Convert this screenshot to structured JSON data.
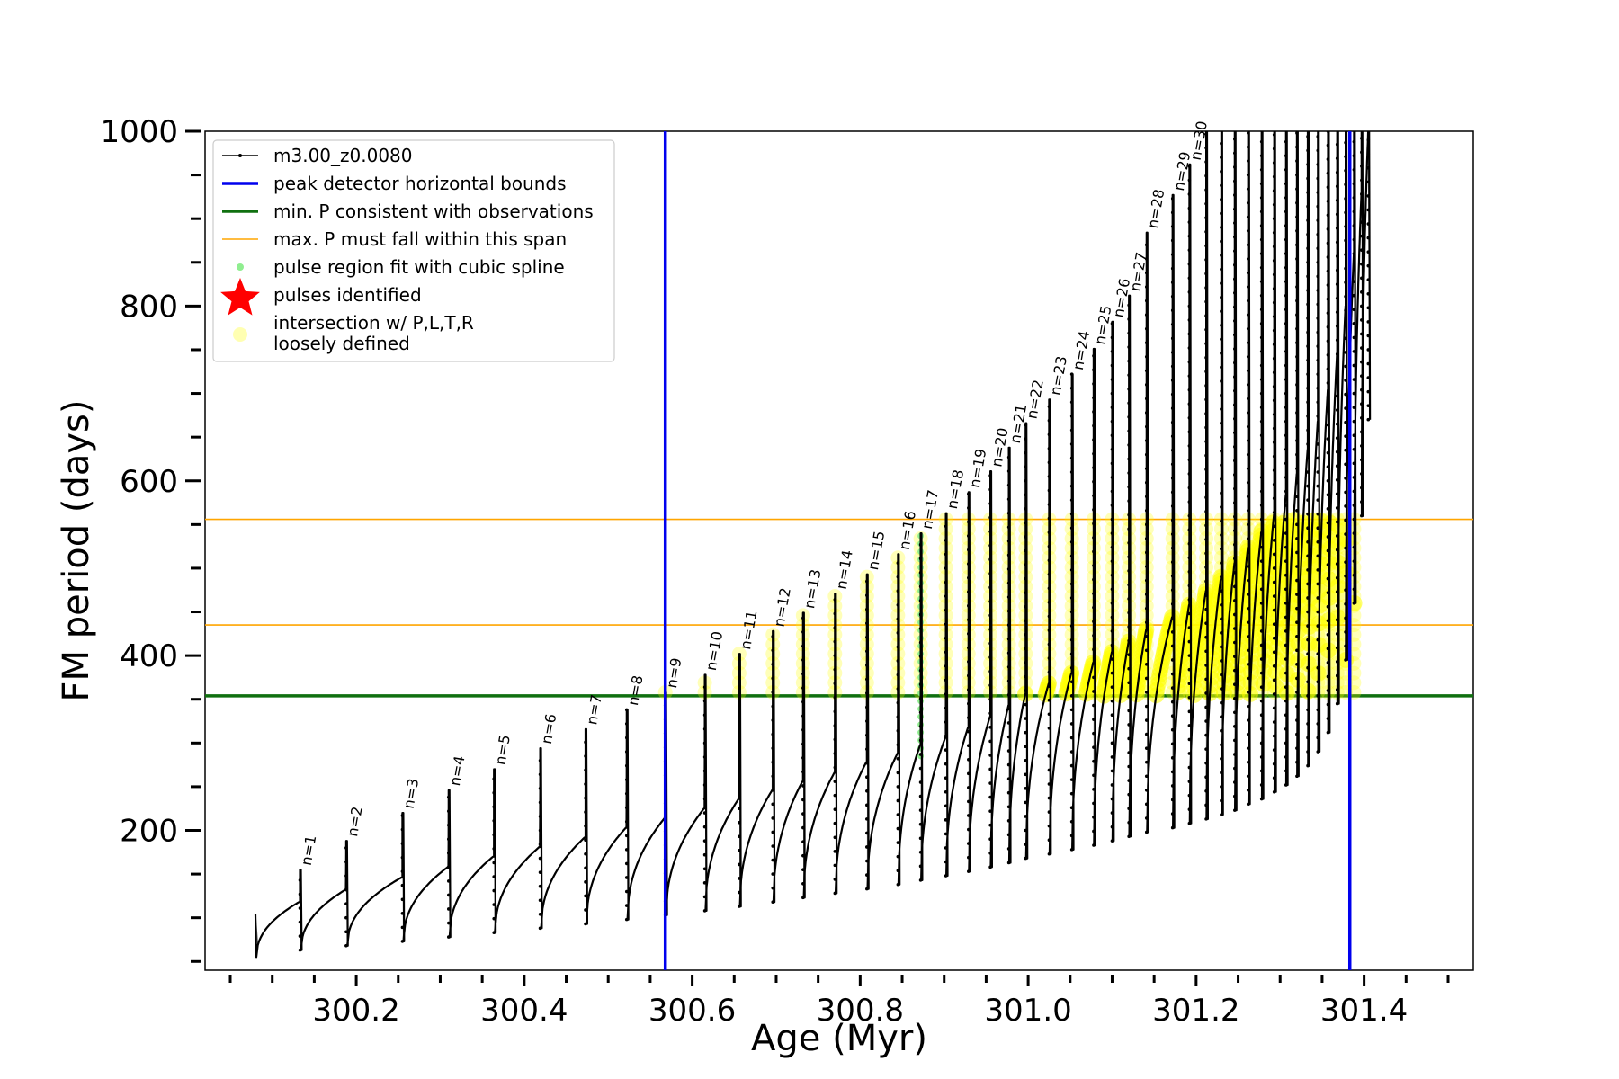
{
  "chart_data": {
    "type": "line",
    "title": "",
    "xlabel": "Age (Myr)",
    "ylabel": "FM period (days)",
    "xlim": [
      300.02,
      301.53
    ],
    "ylim": [
      40,
      1000
    ],
    "x_ticks": [
      300.2,
      300.4,
      300.6,
      300.8,
      301.0,
      301.2,
      301.4
    ],
    "x_tick_labels": [
      "300.2",
      "300.4",
      "300.6",
      "300.8",
      "301.0",
      "301.2",
      "301.4"
    ],
    "y_ticks": [
      200,
      400,
      600,
      800,
      1000
    ],
    "y_tick_labels": [
      "200",
      "400",
      "600",
      "800",
      "1000"
    ],
    "grid": false,
    "legend_position": "top-left",
    "legend": [
      {
        "label": "m3.00_z0.0080",
        "style": "black-line-dot"
      },
      {
        "label": "peak detector horizontal bounds",
        "style": "blue-line"
      },
      {
        "label": "min. P consistent with observations",
        "style": "green-line"
      },
      {
        "label": "max. P must fall within this span",
        "style": "orange-line"
      },
      {
        "label": "pulse region fit with cubic spline",
        "style": "lightgreen-dot"
      },
      {
        "label": "pulses identified",
        "style": "red-star"
      },
      {
        "label": "intersection w/ P,L,T,R",
        "label2": "loosely defined",
        "style": "yellow-circle"
      }
    ],
    "vertical_lines": {
      "color": "#0000ee",
      "x": [
        300.568,
        301.383
      ]
    },
    "min_period_line": {
      "color": "#107010",
      "y": 354
    },
    "max_period_lines": {
      "color": "#ffa500",
      "y": [
        435,
        556
      ]
    },
    "series_color": "#000000",
    "highlight_color": "#ffff00",
    "spline_color": "#90ee90",
    "pulses": [
      {
        "label": "n=1",
        "age": 300.133,
        "peak": 155,
        "floor": 63,
        "pre": 118
      },
      {
        "label": "n=2",
        "age": 300.188,
        "peak": 188,
        "floor": 68,
        "pre": 132
      },
      {
        "label": "n=3",
        "age": 300.255,
        "peak": 220,
        "floor": 73,
        "pre": 146
      },
      {
        "label": "n=4",
        "age": 300.31,
        "peak": 246,
        "floor": 78,
        "pre": 158
      },
      {
        "label": "n=5",
        "age": 300.364,
        "peak": 270,
        "floor": 83,
        "pre": 170
      },
      {
        "label": "n=6",
        "age": 300.419,
        "peak": 294,
        "floor": 88,
        "pre": 181
      },
      {
        "label": "n=7",
        "age": 300.473,
        "peak": 316,
        "floor": 93,
        "pre": 192
      },
      {
        "label": "n=8",
        "age": 300.522,
        "peak": 338,
        "floor": 98,
        "pre": 203
      },
      {
        "label": "n=9",
        "age": 300.568,
        "peak": 358,
        "floor": 103,
        "pre": 214
      },
      {
        "label": "n=10",
        "age": 300.615,
        "peak": 378,
        "floor": 108,
        "pre": 225
      },
      {
        "label": "n=11",
        "age": 300.656,
        "peak": 402,
        "floor": 113,
        "pre": 236
      },
      {
        "label": "n=12",
        "age": 300.696,
        "peak": 428,
        "floor": 118,
        "pre": 246
      },
      {
        "label": "n=13",
        "age": 300.732,
        "peak": 449,
        "floor": 123,
        "pre": 256
      },
      {
        "label": "n=14",
        "age": 300.77,
        "peak": 471,
        "floor": 128,
        "pre": 266
      },
      {
        "label": "n=15",
        "age": 300.808,
        "peak": 493,
        "floor": 133,
        "pre": 278
      },
      {
        "label": "n=16",
        "age": 300.845,
        "peak": 516,
        "floor": 138,
        "pre": 288
      },
      {
        "label": "n=17",
        "age": 300.872,
        "peak": 540,
        "floor": 143,
        "pre": 298
      },
      {
        "label": "n=18",
        "age": 300.902,
        "peak": 563,
        "floor": 148,
        "pre": 306
      },
      {
        "label": "n=19",
        "age": 300.929,
        "peak": 587,
        "floor": 153,
        "pre": 318
      },
      {
        "label": "n=20",
        "age": 300.955,
        "peak": 611,
        "floor": 158,
        "pre": 330
      },
      {
        "label": "n=21",
        "age": 300.977,
        "peak": 638,
        "floor": 163,
        "pre": 343
      },
      {
        "label": "n=22",
        "age": 300.997,
        "peak": 666,
        "floor": 168,
        "pre": 356
      },
      {
        "label": "n=23",
        "age": 301.025,
        "peak": 693,
        "floor": 173,
        "pre": 368
      },
      {
        "label": "n=24",
        "age": 301.052,
        "peak": 722,
        "floor": 178,
        "pre": 380
      },
      {
        "label": "n=25",
        "age": 301.078,
        "peak": 751,
        "floor": 183,
        "pre": 392
      },
      {
        "label": "n=26",
        "age": 301.1,
        "peak": 782,
        "floor": 188,
        "pre": 404
      },
      {
        "label": "n=27",
        "age": 301.12,
        "peak": 812,
        "floor": 193,
        "pre": 416
      },
      {
        "label": "n=28",
        "age": 301.141,
        "peak": 884,
        "floor": 198,
        "pre": 430
      },
      {
        "label": "n=29",
        "age": 301.172,
        "peak": 927,
        "floor": 203,
        "pre": 444
      },
      {
        "label": "n=30",
        "age": 301.192,
        "peak": 962,
        "floor": 208,
        "pre": 458
      },
      {
        "label": "",
        "age": 301.212,
        "peak": 1000,
        "floor": 213,
        "pre": 474
      },
      {
        "label": "",
        "age": 301.23,
        "peak": 1000,
        "floor": 218,
        "pre": 490
      },
      {
        "label": "",
        "age": 301.246,
        "peak": 1000,
        "floor": 223,
        "pre": 506
      },
      {
        "label": "",
        "age": 301.262,
        "peak": 1000,
        "floor": 230,
        "pre": 524
      },
      {
        "label": "",
        "age": 301.278,
        "peak": 1000,
        "floor": 236,
        "pre": 542
      },
      {
        "label": "",
        "age": 301.293,
        "peak": 1000,
        "floor": 244,
        "pre": 562
      },
      {
        "label": "",
        "age": 301.307,
        "peak": 1000,
        "floor": 252,
        "pre": 584
      },
      {
        "label": "",
        "age": 301.32,
        "peak": 1000,
        "floor": 262,
        "pre": 608
      },
      {
        "label": "",
        "age": 301.333,
        "peak": 1000,
        "floor": 274,
        "pre": 636
      },
      {
        "label": "",
        "age": 301.345,
        "peak": 1000,
        "floor": 290,
        "pre": 668
      },
      {
        "label": "",
        "age": 301.357,
        "peak": 1000,
        "floor": 312,
        "pre": 704
      },
      {
        "label": "",
        "age": 301.368,
        "peak": 1000,
        "floor": 345,
        "pre": 746
      },
      {
        "label": "",
        "age": 301.378,
        "peak": 1000,
        "floor": 395,
        "pre": 800
      },
      {
        "label": "",
        "age": 301.388,
        "peak": 1000,
        "floor": 460,
        "pre": 860
      },
      {
        "label": "",
        "age": 301.397,
        "peak": 1000,
        "floor": 560,
        "pre": 930
      },
      {
        "label": "",
        "age": 301.405,
        "peak": 1000,
        "floor": 670,
        "pre": 1000
      }
    ],
    "track_start": {
      "age": 300.08,
      "period": 104
    }
  }
}
